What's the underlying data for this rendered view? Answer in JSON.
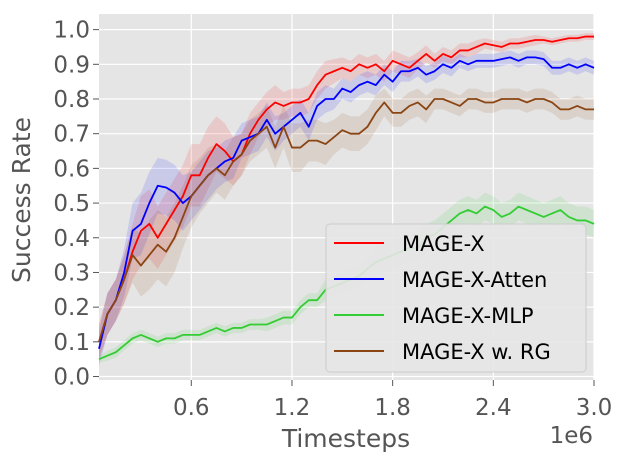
{
  "chart_data": {
    "type": "line",
    "xlabel": "Timesteps",
    "ylabel": "Success Rate",
    "x_offset_label": "1e6",
    "xlim": [
      0.05,
      3.0
    ],
    "ylim": [
      -0.01,
      1.045
    ],
    "x_ticks": [
      0.6,
      1.2,
      1.8,
      2.4,
      3.0
    ],
    "x_tick_labels": [
      "0.6",
      "1.2",
      "1.8",
      "2.4",
      "3.0"
    ],
    "y_ticks": [
      0.0,
      0.1,
      0.2,
      0.3,
      0.4,
      0.5,
      0.6,
      0.7,
      0.8,
      0.9,
      1.0
    ],
    "y_tick_labels": [
      "0.0",
      "0.1",
      "0.2",
      "0.3",
      "0.4",
      "0.5",
      "0.6",
      "0.7",
      "0.8",
      "0.9",
      "1.0"
    ],
    "grid": true,
    "legend_position": "lower-right",
    "series": [
      {
        "name": "MAGE-X",
        "color": "#ff0000",
        "x": [
          0.05,
          0.1,
          0.15,
          0.2,
          0.25,
          0.3,
          0.35,
          0.4,
          0.45,
          0.5,
          0.55,
          0.6,
          0.65,
          0.7,
          0.75,
          0.8,
          0.85,
          0.9,
          0.95,
          1.0,
          1.05,
          1.1,
          1.15,
          1.2,
          1.25,
          1.3,
          1.35,
          1.4,
          1.45,
          1.5,
          1.55,
          1.6,
          1.65,
          1.7,
          1.75,
          1.8,
          1.85,
          1.9,
          1.95,
          2.0,
          2.05,
          2.1,
          2.15,
          2.2,
          2.25,
          2.3,
          2.35,
          2.4,
          2.45,
          2.5,
          2.55,
          2.6,
          2.65,
          2.7,
          2.75,
          2.8,
          2.85,
          2.9,
          2.95,
          3.0
        ],
        "y": [
          0.1,
          0.18,
          0.22,
          0.28,
          0.36,
          0.42,
          0.44,
          0.4,
          0.44,
          0.48,
          0.52,
          0.58,
          0.58,
          0.63,
          0.67,
          0.65,
          0.62,
          0.64,
          0.7,
          0.74,
          0.77,
          0.79,
          0.78,
          0.79,
          0.79,
          0.8,
          0.84,
          0.87,
          0.88,
          0.89,
          0.88,
          0.9,
          0.89,
          0.9,
          0.88,
          0.91,
          0.9,
          0.89,
          0.91,
          0.93,
          0.91,
          0.93,
          0.92,
          0.94,
          0.94,
          0.95,
          0.96,
          0.955,
          0.95,
          0.96,
          0.96,
          0.965,
          0.97,
          0.97,
          0.965,
          0.97,
          0.975,
          0.975,
          0.98,
          0.98
        ],
        "band": [
          0.05,
          0.06,
          0.06,
          0.07,
          0.08,
          0.1,
          0.1,
          0.09,
          0.09,
          0.09,
          0.09,
          0.09,
          0.09,
          0.09,
          0.08,
          0.08,
          0.07,
          0.06,
          0.06,
          0.05,
          0.05,
          0.05,
          0.04,
          0.04,
          0.04,
          0.04,
          0.04,
          0.04,
          0.035,
          0.03,
          0.03,
          0.03,
          0.03,
          0.03,
          0.03,
          0.03,
          0.03,
          0.03,
          0.025,
          0.025,
          0.02,
          0.02,
          0.02,
          0.02,
          0.02,
          0.02,
          0.015,
          0.015,
          0.015,
          0.015,
          0.015,
          0.015,
          0.015,
          0.01,
          0.01,
          0.01,
          0.01,
          0.01,
          0.01,
          0.01
        ]
      },
      {
        "name": "MAGE-X-Atten",
        "color": "#0000ff",
        "x": [
          0.05,
          0.1,
          0.15,
          0.2,
          0.25,
          0.3,
          0.35,
          0.4,
          0.45,
          0.5,
          0.55,
          0.6,
          0.65,
          0.7,
          0.75,
          0.8,
          0.85,
          0.9,
          0.95,
          1.0,
          1.05,
          1.1,
          1.15,
          1.2,
          1.25,
          1.3,
          1.35,
          1.4,
          1.45,
          1.5,
          1.55,
          1.6,
          1.65,
          1.7,
          1.75,
          1.8,
          1.85,
          1.9,
          1.95,
          2.0,
          2.05,
          2.1,
          2.15,
          2.2,
          2.25,
          2.3,
          2.35,
          2.4,
          2.45,
          2.5,
          2.55,
          2.6,
          2.65,
          2.7,
          2.75,
          2.8,
          2.85,
          2.9,
          2.95,
          3.0
        ],
        "y": [
          0.08,
          0.18,
          0.22,
          0.3,
          0.42,
          0.44,
          0.5,
          0.55,
          0.545,
          0.53,
          0.5,
          0.52,
          0.55,
          0.58,
          0.6,
          0.62,
          0.63,
          0.68,
          0.69,
          0.7,
          0.74,
          0.7,
          0.72,
          0.74,
          0.76,
          0.72,
          0.78,
          0.8,
          0.8,
          0.83,
          0.82,
          0.84,
          0.85,
          0.84,
          0.87,
          0.85,
          0.88,
          0.88,
          0.89,
          0.87,
          0.88,
          0.9,
          0.89,
          0.91,
          0.9,
          0.91,
          0.91,
          0.91,
          0.915,
          0.92,
          0.91,
          0.92,
          0.92,
          0.915,
          0.89,
          0.89,
          0.9,
          0.89,
          0.9,
          0.89
        ],
        "band": [
          0.05,
          0.06,
          0.06,
          0.07,
          0.08,
          0.09,
          0.09,
          0.08,
          0.08,
          0.08,
          0.08,
          0.07,
          0.07,
          0.07,
          0.06,
          0.06,
          0.06,
          0.05,
          0.05,
          0.05,
          0.05,
          0.05,
          0.04,
          0.04,
          0.04,
          0.04,
          0.04,
          0.04,
          0.03,
          0.03,
          0.03,
          0.03,
          0.03,
          0.03,
          0.03,
          0.03,
          0.03,
          0.03,
          0.025,
          0.025,
          0.025,
          0.025,
          0.025,
          0.02,
          0.02,
          0.02,
          0.02,
          0.02,
          0.02,
          0.02,
          0.02,
          0.02,
          0.02,
          0.02,
          0.02,
          0.02,
          0.02,
          0.02,
          0.02,
          0.02
        ]
      },
      {
        "name": "MAGE-X-MLP",
        "color": "#33cc33",
        "x": [
          0.05,
          0.1,
          0.15,
          0.2,
          0.25,
          0.3,
          0.35,
          0.4,
          0.45,
          0.5,
          0.55,
          0.6,
          0.65,
          0.7,
          0.75,
          0.8,
          0.85,
          0.9,
          0.95,
          1.0,
          1.05,
          1.1,
          1.15,
          1.2,
          1.25,
          1.3,
          1.35,
          1.4,
          1.45,
          1.5,
          1.55,
          1.6,
          1.65,
          1.7,
          1.75,
          1.8,
          1.85,
          1.9,
          1.95,
          2.0,
          2.05,
          2.1,
          2.15,
          2.2,
          2.25,
          2.3,
          2.35,
          2.4,
          2.45,
          2.5,
          2.55,
          2.6,
          2.65,
          2.7,
          2.75,
          2.8,
          2.85,
          2.9,
          2.95,
          3.0
        ],
        "y": [
          0.05,
          0.06,
          0.07,
          0.09,
          0.11,
          0.12,
          0.11,
          0.1,
          0.11,
          0.11,
          0.12,
          0.12,
          0.12,
          0.13,
          0.14,
          0.13,
          0.14,
          0.14,
          0.15,
          0.15,
          0.15,
          0.16,
          0.17,
          0.17,
          0.2,
          0.22,
          0.22,
          0.25,
          0.26,
          0.27,
          0.28,
          0.29,
          0.31,
          0.33,
          0.34,
          0.35,
          0.36,
          0.37,
          0.37,
          0.4,
          0.41,
          0.43,
          0.45,
          0.47,
          0.48,
          0.47,
          0.49,
          0.48,
          0.46,
          0.47,
          0.49,
          0.48,
          0.47,
          0.46,
          0.47,
          0.48,
          0.46,
          0.45,
          0.45,
          0.44
        ],
        "band": [
          0.01,
          0.015,
          0.015,
          0.015,
          0.015,
          0.015,
          0.015,
          0.015,
          0.015,
          0.015,
          0.015,
          0.015,
          0.015,
          0.015,
          0.015,
          0.015,
          0.015,
          0.015,
          0.015,
          0.015,
          0.02,
          0.02,
          0.02,
          0.02,
          0.02,
          0.02,
          0.02,
          0.03,
          0.03,
          0.03,
          0.03,
          0.03,
          0.03,
          0.04,
          0.04,
          0.04,
          0.04,
          0.04,
          0.04,
          0.04,
          0.04,
          0.04,
          0.04,
          0.04,
          0.04,
          0.04,
          0.04,
          0.04,
          0.04,
          0.04,
          0.04,
          0.04,
          0.04,
          0.04,
          0.04,
          0.04,
          0.04,
          0.04,
          0.04,
          0.04
        ]
      },
      {
        "name": "MAGE-X w. RG",
        "color": "#8b4513",
        "x": [
          0.05,
          0.1,
          0.15,
          0.2,
          0.25,
          0.3,
          0.35,
          0.4,
          0.45,
          0.5,
          0.55,
          0.6,
          0.65,
          0.7,
          0.75,
          0.8,
          0.85,
          0.9,
          0.95,
          1.0,
          1.05,
          1.1,
          1.15,
          1.2,
          1.25,
          1.3,
          1.35,
          1.4,
          1.45,
          1.5,
          1.55,
          1.6,
          1.65,
          1.7,
          1.75,
          1.8,
          1.85,
          1.9,
          1.95,
          2.0,
          2.05,
          2.1,
          2.15,
          2.2,
          2.25,
          2.3,
          2.35,
          2.4,
          2.45,
          2.5,
          2.55,
          2.6,
          2.65,
          2.7,
          2.75,
          2.8,
          2.85,
          2.9,
          2.95,
          3.0
        ],
        "y": [
          0.1,
          0.18,
          0.22,
          0.28,
          0.35,
          0.32,
          0.35,
          0.38,
          0.36,
          0.4,
          0.46,
          0.52,
          0.55,
          0.58,
          0.6,
          0.58,
          0.62,
          0.64,
          0.68,
          0.7,
          0.72,
          0.66,
          0.72,
          0.66,
          0.66,
          0.68,
          0.68,
          0.67,
          0.69,
          0.71,
          0.7,
          0.7,
          0.72,
          0.76,
          0.79,
          0.76,
          0.76,
          0.78,
          0.79,
          0.77,
          0.8,
          0.8,
          0.79,
          0.78,
          0.8,
          0.8,
          0.79,
          0.79,
          0.8,
          0.8,
          0.8,
          0.79,
          0.8,
          0.8,
          0.79,
          0.77,
          0.77,
          0.78,
          0.77,
          0.77
        ],
        "band": [
          0.05,
          0.06,
          0.06,
          0.07,
          0.08,
          0.09,
          0.1,
          0.1,
          0.1,
          0.1,
          0.09,
          0.09,
          0.08,
          0.08,
          0.07,
          0.07,
          0.07,
          0.06,
          0.06,
          0.06,
          0.06,
          0.06,
          0.06,
          0.07,
          0.07,
          0.06,
          0.06,
          0.06,
          0.05,
          0.05,
          0.05,
          0.05,
          0.05,
          0.05,
          0.04,
          0.04,
          0.04,
          0.04,
          0.04,
          0.04,
          0.03,
          0.03,
          0.03,
          0.03,
          0.03,
          0.03,
          0.03,
          0.03,
          0.03,
          0.03,
          0.03,
          0.03,
          0.03,
          0.03,
          0.03,
          0.03,
          0.03,
          0.03,
          0.03,
          0.03
        ]
      }
    ]
  }
}
